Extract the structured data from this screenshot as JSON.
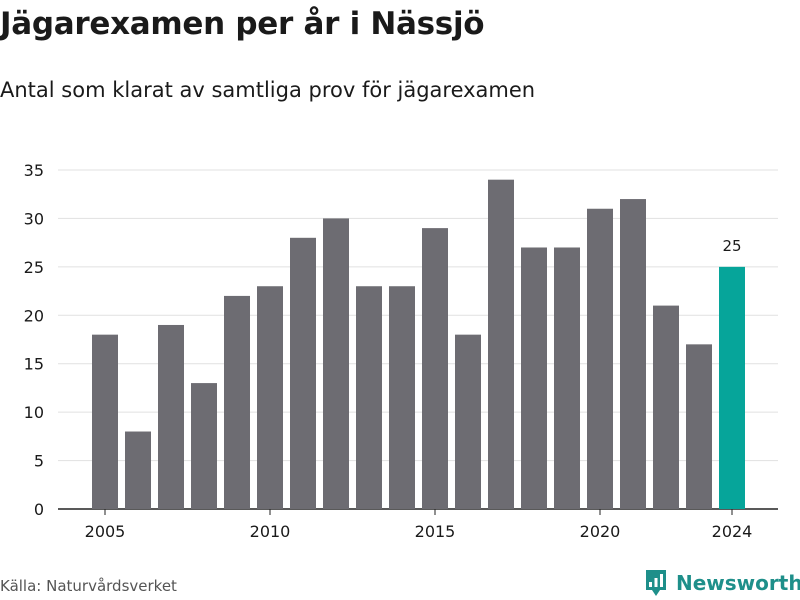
{
  "title": "Jägarexamen per år i Nässjö",
  "subtitle": "Antal som klarat av samtliga prov för jägarexamen",
  "source": "Källa: Naturvårdsverket",
  "brand": {
    "name": "Newsworthy",
    "icon": "newsworthy-logo-icon"
  },
  "colors": {
    "bar": "#6d6c72",
    "highlight": "#06a59a",
    "grid": "#e1e1e1",
    "text": "#1a1a1a",
    "brand": "#1e8f8a"
  },
  "chart_data": {
    "type": "bar",
    "title": "Jägarexamen per år i Nässjö",
    "subtitle": "Antal som klarat av samtliga prov för jägarexamen",
    "x": [
      2005,
      2006,
      2007,
      2008,
      2009,
      2010,
      2011,
      2012,
      2013,
      2014,
      2015,
      2016,
      2017,
      2018,
      2019,
      2020,
      2021,
      2022,
      2023,
      2024
    ],
    "values": [
      18,
      8,
      19,
      13,
      22,
      23,
      28,
      30,
      23,
      23,
      29,
      18,
      34,
      27,
      27,
      31,
      32,
      21,
      17,
      25
    ],
    "highlight_index": 19,
    "highlight_label": "25",
    "xticks": [
      2005,
      2010,
      2015,
      2020,
      2024
    ],
    "yticks": [
      0,
      5,
      10,
      15,
      20,
      25,
      30,
      35
    ],
    "ylim": [
      0,
      35
    ],
    "grid": true,
    "xlabel": "",
    "ylabel": ""
  }
}
